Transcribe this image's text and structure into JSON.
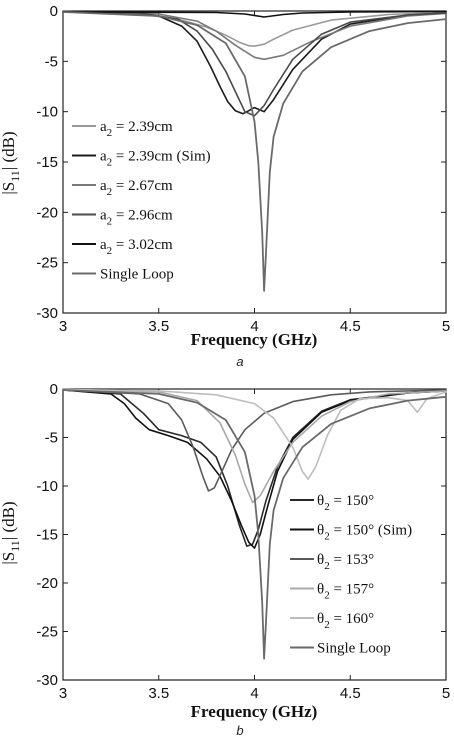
{
  "chart_data": [
    {
      "type": "line",
      "panel": "a",
      "caption": "a",
      "xlabel": "Frequency (GHz)",
      "ylabel": "|S11| (dB)",
      "xlim": [
        3,
        5
      ],
      "ylim": [
        -30,
        0
      ],
      "xticks": [
        3,
        3.5,
        4,
        4.5,
        5
      ],
      "yticks": [
        0,
        -5,
        -10,
        -15,
        -20,
        -25,
        -30
      ],
      "legend_position": "left-middle",
      "series": [
        {
          "name": "a2 = 2.39cm",
          "label_main": "a",
          "label_sub": "2",
          "label_rest": " = 2.39cm",
          "color": "#9a9a9a",
          "width": 1.6,
          "x": [
            3.0,
            3.4,
            3.6,
            3.75,
            3.85,
            3.92,
            3.97,
            4.0,
            4.05,
            4.1,
            4.2,
            4.4,
            4.7,
            5.0
          ],
          "y": [
            -0.05,
            -0.3,
            -0.8,
            -1.6,
            -2.4,
            -3.1,
            -3.45,
            -3.5,
            -3.3,
            -2.8,
            -1.9,
            -0.9,
            -0.35,
            -0.15
          ]
        },
        {
          "name": "a2 = 2.39cm (Sim)",
          "label_main": "a",
          "label_sub": "2",
          "label_rest": " = 2.39cm (Sim)",
          "color": "#1c1c1c",
          "width": 1.6,
          "x": [
            3.0,
            3.3,
            3.5,
            3.62,
            3.7,
            3.77,
            3.82,
            3.86,
            3.9,
            3.94,
            3.97,
            4.0,
            4.05,
            4.1,
            4.2,
            4.35,
            4.5,
            4.8,
            5.0
          ],
          "y": [
            -0.05,
            -0.15,
            -0.5,
            -1.5,
            -3.0,
            -5.5,
            -7.5,
            -9.0,
            -9.9,
            -10.2,
            -9.9,
            -9.6,
            -10.0,
            -8.8,
            -5.8,
            -2.8,
            -1.3,
            -0.4,
            -0.2
          ]
        },
        {
          "name": "a2 = 2.67cm",
          "label_main": "a",
          "label_sub": "2",
          "label_rest": " = 2.67cm",
          "color": "#7a7a7a",
          "width": 1.6,
          "x": [
            3.0,
            3.5,
            3.7,
            3.8,
            3.9,
            4.0,
            4.05,
            4.15,
            4.3,
            4.5,
            4.8,
            5.0
          ],
          "y": [
            -0.05,
            -0.3,
            -1.0,
            -2.0,
            -3.4,
            -4.6,
            -4.8,
            -4.4,
            -3.0,
            -1.5,
            -0.5,
            -0.25
          ]
        },
        {
          "name": "a2 = 2.96cm",
          "label_main": "a",
          "label_sub": "2",
          "label_rest": " = 2.96cm",
          "color": "#4a4a4a",
          "width": 1.6,
          "x": [
            3.0,
            3.4,
            3.6,
            3.7,
            3.78,
            3.85,
            3.9,
            3.95,
            4.0,
            4.05,
            4.1,
            4.2,
            4.35,
            4.5,
            4.8,
            5.0
          ],
          "y": [
            -0.05,
            -0.2,
            -0.8,
            -2.0,
            -3.8,
            -6.0,
            -8.0,
            -10.0,
            -10.4,
            -9.4,
            -7.8,
            -4.8,
            -2.3,
            -1.1,
            -0.4,
            -0.2
          ]
        },
        {
          "name": "a2 = 3.02cm",
          "label_main": "a",
          "label_sub": "2",
          "label_rest": " = 3.02cm",
          "color": "#111111",
          "width": 1.6,
          "x": [
            3.0,
            3.8,
            3.95,
            4.05,
            4.15,
            4.25,
            4.5,
            5.0
          ],
          "y": [
            -0.1,
            -0.15,
            -0.3,
            -0.6,
            -0.35,
            -0.2,
            -0.1,
            -0.05
          ]
        },
        {
          "name": "Single Loop",
          "label_main": "Single Loop",
          "label_sub": "",
          "label_rest": "",
          "color": "#6a6a6a",
          "width": 1.8,
          "x": [
            3.0,
            3.5,
            3.7,
            3.85,
            3.95,
            4.0,
            4.02,
            4.04,
            4.05,
            4.06,
            4.08,
            4.1,
            4.15,
            4.25,
            4.4,
            4.6,
            4.8,
            5.0
          ],
          "y": [
            -0.1,
            -0.5,
            -1.4,
            -3.2,
            -6.5,
            -11.0,
            -15.0,
            -22.0,
            -27.8,
            -24.0,
            -16.0,
            -12.5,
            -9.2,
            -6.0,
            -3.6,
            -2.0,
            -1.2,
            -0.8
          ]
        }
      ]
    },
    {
      "type": "line",
      "panel": "b",
      "caption": "b",
      "xlabel": "Frequency (GHz)",
      "ylabel": "|S11| (dB)",
      "xlim": [
        3,
        5
      ],
      "ylim": [
        -30,
        0
      ],
      "xticks": [
        3,
        3.5,
        4,
        4.5,
        5
      ],
      "yticks": [
        0,
        -5,
        -10,
        -15,
        -20,
        -25,
        -30
      ],
      "legend_position": "right-middle",
      "series": [
        {
          "name": "θ2 = 150°",
          "label_main": "θ",
          "label_sub": "2",
          "label_rest": " = 150°",
          "color": "#2a2a2a",
          "width": 1.6,
          "x": [
            3.0,
            3.3,
            3.42,
            3.5,
            3.62,
            3.72,
            3.8,
            3.86,
            3.92,
            3.96,
            3.99,
            4.02,
            4.06,
            4.12,
            4.2,
            4.35,
            4.5,
            4.8,
            5.0
          ],
          "y": [
            -0.1,
            -0.5,
            -2.5,
            -4.2,
            -4.8,
            -5.5,
            -7.0,
            -10.0,
            -14.0,
            -16.2,
            -16.0,
            -14.5,
            -11.5,
            -8.0,
            -5.0,
            -2.3,
            -1.1,
            -0.4,
            -0.2
          ]
        },
        {
          "name": "θ2 = 150° (Sim)",
          "label_main": "θ",
          "label_sub": "2",
          "label_rest": " = 150° (Sim)",
          "color": "#111111",
          "width": 1.6,
          "x": [
            3.0,
            3.25,
            3.32,
            3.38,
            3.45,
            3.55,
            3.65,
            3.75,
            3.82,
            3.88,
            3.93,
            3.97,
            4.0,
            4.03,
            4.07,
            4.12,
            4.2,
            4.35,
            4.5,
            4.8,
            5.0
          ],
          "y": [
            -0.1,
            -0.5,
            -1.5,
            -3.0,
            -4.2,
            -4.8,
            -5.5,
            -7.2,
            -9.0,
            -11.5,
            -14.0,
            -15.8,
            -16.4,
            -15.0,
            -12.0,
            -8.5,
            -5.2,
            -2.4,
            -1.2,
            -0.4,
            -0.2
          ]
        },
        {
          "name": "θ2 = 153°",
          "label_main": "θ",
          "label_sub": "2",
          "label_rest": " = 153°",
          "color": "#5a5a5a",
          "width": 1.6,
          "x": [
            3.0,
            3.4,
            3.55,
            3.62,
            3.68,
            3.73,
            3.76,
            3.79,
            3.83,
            3.88,
            3.95,
            4.05,
            4.2,
            4.4,
            4.6,
            5.0
          ],
          "y": [
            -0.1,
            -0.5,
            -1.5,
            -3.2,
            -6.0,
            -9.0,
            -10.5,
            -10.2,
            -8.5,
            -6.3,
            -4.2,
            -2.5,
            -1.3,
            -0.6,
            -0.3,
            -0.1
          ]
        },
        {
          "name": "θ2 = 157°",
          "label_main": "θ",
          "label_sub": "2",
          "label_rest": " = 157°",
          "color": "#a8a8a8",
          "width": 1.6,
          "x": [
            3.0,
            3.5,
            3.7,
            3.82,
            3.9,
            3.95,
            3.99,
            4.03,
            4.1,
            4.2,
            4.35,
            4.5,
            4.7,
            5.0
          ],
          "y": [
            -0.05,
            -0.3,
            -1.2,
            -3.5,
            -6.8,
            -9.8,
            -11.7,
            -11.0,
            -8.5,
            -5.5,
            -2.8,
            -1.3,
            -0.5,
            -0.2
          ]
        },
        {
          "name": "θ2 = 160°",
          "label_main": "θ",
          "label_sub": "2",
          "label_rest": " = 160°",
          "color": "#bdbdbd",
          "width": 1.6,
          "x": [
            3.0,
            3.5,
            3.8,
            4.0,
            4.1,
            4.2,
            4.25,
            4.28,
            4.32,
            4.38,
            4.45,
            4.55,
            4.7,
            4.8,
            4.85,
            4.9,
            5.0
          ],
          "y": [
            -0.05,
            -0.2,
            -0.6,
            -1.5,
            -3.0,
            -6.0,
            -8.5,
            -9.3,
            -8.0,
            -4.8,
            -2.2,
            -1.0,
            -0.9,
            -1.2,
            -2.4,
            -1.0,
            -0.3
          ]
        },
        {
          "name": "Single Loop",
          "label_main": "Single Loop",
          "label_sub": "",
          "label_rest": "",
          "color": "#6a6a6a",
          "width": 1.8,
          "x": [
            3.0,
            3.5,
            3.7,
            3.85,
            3.95,
            4.0,
            4.02,
            4.04,
            4.05,
            4.06,
            4.08,
            4.1,
            4.15,
            4.25,
            4.4,
            4.6,
            4.8,
            5.0
          ],
          "y": [
            -0.1,
            -0.5,
            -1.4,
            -3.2,
            -6.5,
            -11.0,
            -15.0,
            -22.0,
            -27.8,
            -24.0,
            -16.0,
            -12.5,
            -9.2,
            -6.0,
            -3.6,
            -2.0,
            -1.2,
            -0.8
          ]
        }
      ]
    }
  ]
}
